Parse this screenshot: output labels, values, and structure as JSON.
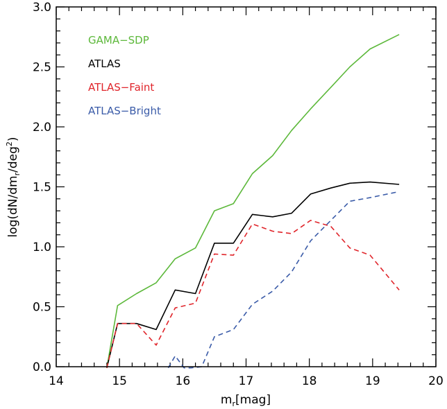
{
  "chart_data": {
    "type": "line",
    "title": "",
    "xlabel": {
      "main": "m",
      "sub": "r",
      "rest": "[mag]"
    },
    "ylabel": {
      "p1": "log(dN/dm",
      "sub": "r",
      "p2": "/deg",
      "sup": "2",
      "p3": ")"
    },
    "xlim": [
      14,
      20
    ],
    "ylim": [
      0,
      3.0
    ],
    "xticks": [
      14,
      15,
      16,
      17,
      18,
      19,
      20
    ],
    "yticks": [
      "0.0",
      "0.5",
      "1.0",
      "1.5",
      "2.0",
      "2.5",
      "3.0"
    ],
    "legend_position": "top-left",
    "series": [
      {
        "name": "GAMA−SDP",
        "color": "#5cb83a",
        "dash": "solid",
        "x": [
          14.8,
          14.97,
          15.27,
          15.58,
          15.88,
          16.2,
          16.5,
          16.8,
          17.1,
          17.42,
          17.72,
          18.02,
          18.34,
          18.64,
          18.96,
          19.42
        ],
        "y": [
          -0.01,
          0.51,
          0.61,
          0.7,
          0.9,
          0.99,
          1.3,
          1.36,
          1.61,
          1.76,
          1.97,
          2.15,
          2.33,
          2.5,
          2.65,
          2.77
        ]
      },
      {
        "name": "ATLAS",
        "color": "#000000",
        "dash": "solid",
        "x": [
          14.8,
          14.97,
          15.27,
          15.58,
          15.88,
          16.2,
          16.5,
          16.8,
          17.1,
          17.42,
          17.72,
          18.02,
          18.34,
          18.64,
          18.96,
          19.42
        ],
        "y": [
          -0.01,
          0.36,
          0.36,
          0.31,
          0.64,
          0.61,
          1.03,
          1.03,
          1.27,
          1.25,
          1.28,
          1.44,
          1.49,
          1.53,
          1.54,
          1.52
        ]
      },
      {
        "name": "ATLAS−Faint",
        "color": "#e0242a",
        "dash": "dashed",
        "x": [
          14.8,
          14.97,
          15.27,
          15.58,
          15.88,
          16.2,
          16.5,
          16.8,
          17.1,
          17.42,
          17.72,
          18.02,
          18.34,
          18.64,
          18.96,
          19.42
        ],
        "y": [
          -0.01,
          0.36,
          0.36,
          0.18,
          0.49,
          0.53,
          0.94,
          0.93,
          1.19,
          1.13,
          1.11,
          1.22,
          1.17,
          0.99,
          0.93,
          0.64
        ]
      },
      {
        "name": "ATLAS−Bright",
        "color": "#3a5ba8",
        "dash": "dashed",
        "x": [
          15.77,
          15.88,
          16.02,
          16.13,
          16.3,
          16.5,
          16.8,
          17.1,
          17.42,
          17.72,
          18.02,
          18.34,
          18.64,
          18.96,
          19.42
        ],
        "y": [
          -0.01,
          0.09,
          -0.01,
          -0.01,
          0.0,
          0.25,
          0.31,
          0.52,
          0.63,
          0.79,
          1.05,
          1.22,
          1.38,
          1.41,
          1.46
        ]
      }
    ]
  }
}
